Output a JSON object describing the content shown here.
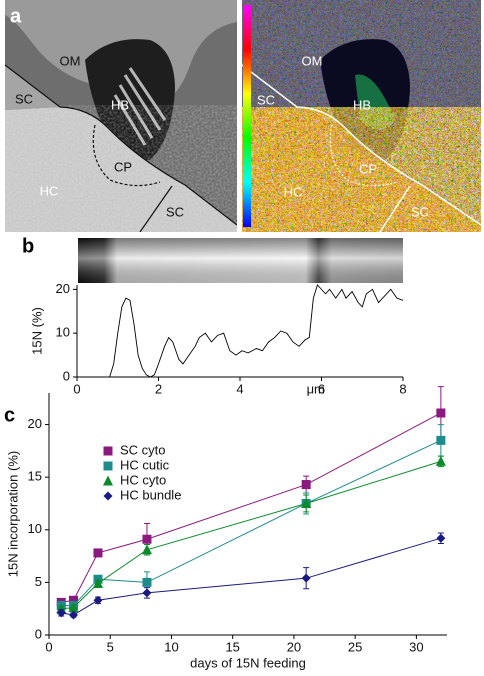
{
  "panel_labels": [
    "a",
    "b",
    "c"
  ],
  "image_labels": {
    "left": [
      "OM",
      "SC",
      "HB",
      "CP",
      "HC",
      "SC"
    ],
    "right": [
      "OM",
      "SC",
      "HB",
      "CP",
      "HC",
      "SC"
    ]
  },
  "chart_data": [
    {
      "type": "line",
      "x": [
        0.8,
        0.9,
        1.0,
        1.1,
        1.2,
        1.3,
        1.4,
        1.5,
        1.6,
        1.7,
        1.8,
        1.9,
        2.0,
        2.15,
        2.25,
        2.35,
        2.5,
        2.6,
        2.75,
        2.9,
        3.0,
        3.15,
        3.3,
        3.45,
        3.6,
        3.75,
        3.9,
        4.05,
        4.2,
        4.4,
        4.55,
        4.7,
        4.85,
        5.0,
        5.15,
        5.3,
        5.45,
        5.6,
        5.7,
        5.8,
        5.9,
        6.0,
        6.1,
        6.2,
        6.35,
        6.5,
        6.6,
        6.75,
        6.9,
        7.0,
        7.1,
        7.25,
        7.4,
        7.55,
        7.7,
        7.85,
        8.0
      ],
      "values": [
        0,
        3,
        10,
        16,
        18,
        17.5,
        12,
        5,
        2,
        0.5,
        0,
        0.5,
        3,
        7,
        9,
        8,
        4,
        3,
        5,
        7,
        9,
        10,
        8,
        9.5,
        10,
        6,
        5,
        6,
        5.5,
        6.5,
        6,
        8,
        9,
        10.5,
        10,
        8,
        7,
        8.5,
        9,
        18,
        21,
        20,
        19,
        20,
        18,
        20,
        18,
        19.5,
        17,
        16,
        19,
        20,
        17,
        18.5,
        20,
        18,
        17.5
      ],
      "color": "#000000",
      "xlim": [
        0,
        8
      ],
      "ylim": [
        0,
        21
      ],
      "xticks": [
        0,
        2,
        4,
        6,
        8
      ],
      "yticks": [
        0,
        10,
        20
      ],
      "xlabel": "μm",
      "ylabel": "15N (%)"
    },
    {
      "type": "line",
      "xlabel": "days of 15N feeding",
      "ylabel": "15N incorporation (%)",
      "xlim": [
        0,
        32.5
      ],
      "ylim": [
        0,
        23
      ],
      "xticks": [
        0,
        5,
        10,
        15,
        20,
        25,
        30
      ],
      "yticks": [
        0,
        5,
        10,
        15,
        20
      ],
      "legend": "upper left",
      "series": [
        {
          "name": "SC cyto",
          "color": "#8b1a7e",
          "marker": "square",
          "x": [
            1,
            2,
            4,
            8,
            21,
            32
          ],
          "values": [
            3.1,
            3.3,
            7.8,
            9.1,
            14.3,
            21.1
          ],
          "errors": [
            0.2,
            0.2,
            0.2,
            1.5,
            0.8,
            2.5
          ]
        },
        {
          "name": "HC cutic",
          "color": "#1e8c8c",
          "marker": "square",
          "x": [
            1,
            2,
            4,
            8,
            21,
            32
          ],
          "values": [
            2.8,
            2.8,
            5.3,
            5.0,
            12.5,
            18.5
          ],
          "errors": [
            0.2,
            0.2,
            0.3,
            1.0,
            1.0,
            1.5
          ]
        },
        {
          "name": "HC cyto",
          "color": "#0a8a2a",
          "marker": "triangle",
          "x": [
            1,
            2,
            4,
            8,
            21,
            32
          ],
          "values": [
            2.5,
            2.6,
            4.9,
            8.1,
            12.5,
            16.5
          ],
          "errors": [
            0.2,
            0.2,
            0.3,
            0.5,
            0.8,
            0.5
          ]
        },
        {
          "name": "HC bundle",
          "color": "#1a1a80",
          "marker": "diamond",
          "x": [
            1,
            2,
            4,
            8,
            21,
            32
          ],
          "values": [
            2.1,
            1.9,
            3.3,
            4.0,
            5.4,
            9.2
          ],
          "errors": [
            0.3,
            0.2,
            0.3,
            0.5,
            1.0,
            0.5
          ]
        }
      ]
    }
  ]
}
